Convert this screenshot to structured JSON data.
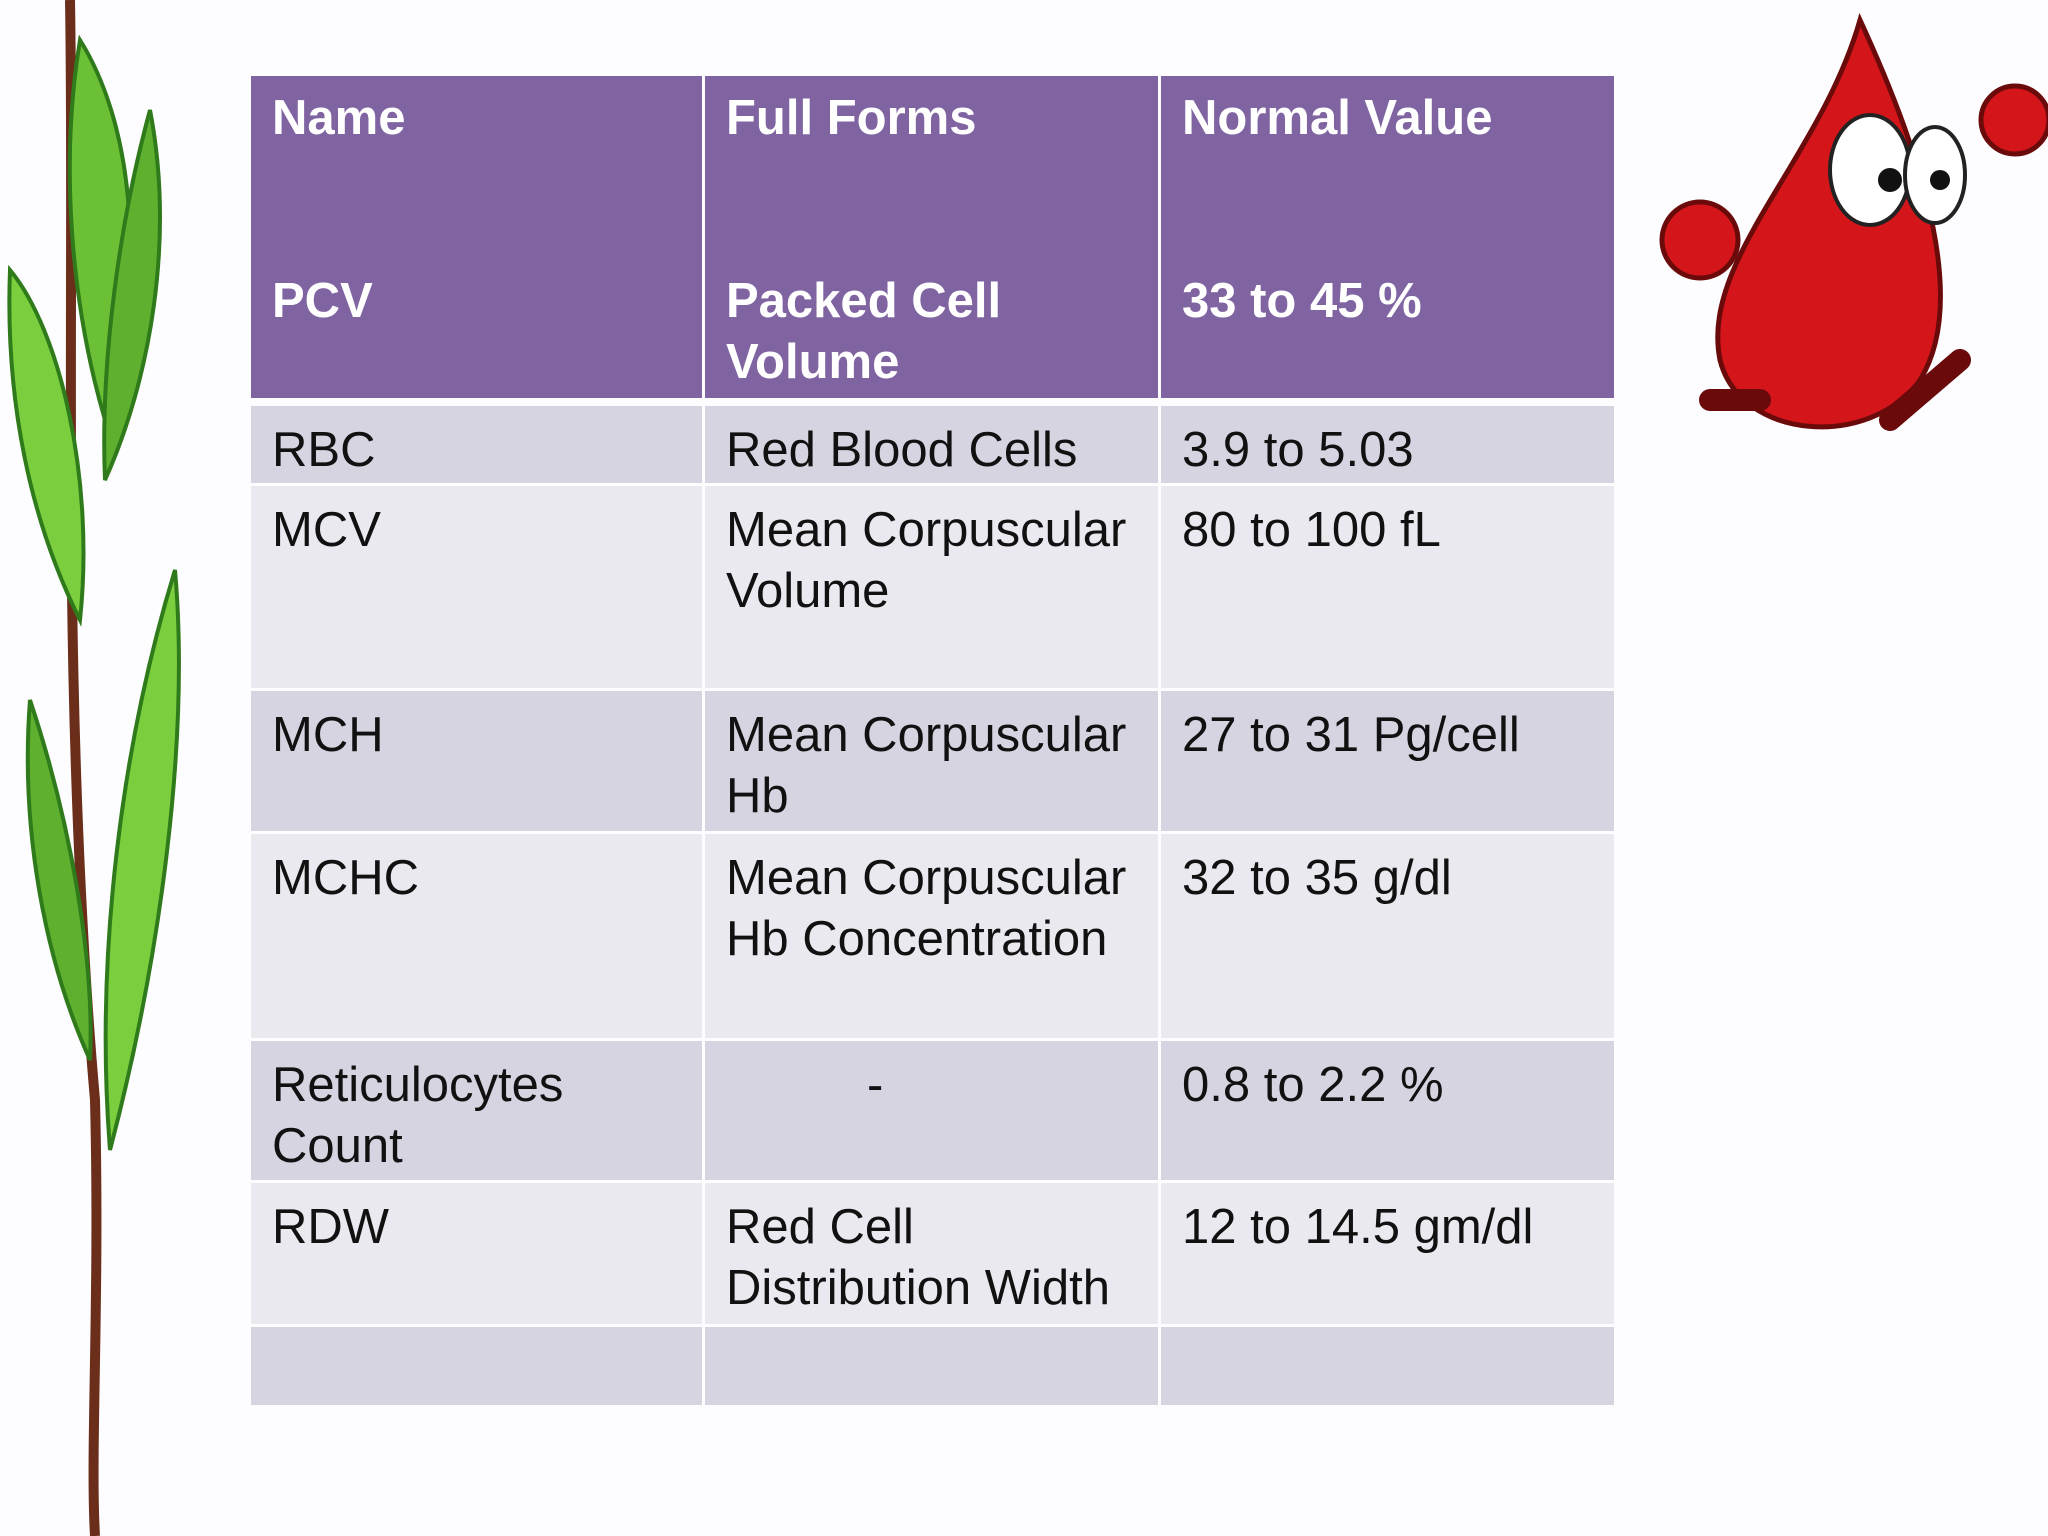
{
  "table": {
    "header": [
      "Name",
      "Full Forms",
      "Normal Value"
    ],
    "subheader": [
      "PCV",
      "Packed Cell Volume",
      "33 to 45 %"
    ],
    "rows": [
      [
        "RBC",
        "Red Blood Cells",
        "3.9 to 5.03"
      ],
      [
        "MCV",
        "Mean Corpuscular Volume",
        "80 to 100 fL"
      ],
      [
        "MCH",
        "Mean Corpuscular Hb",
        "27 to 31 Pg/cell"
      ],
      [
        "MCHC",
        "Mean Corpuscular Hb Concentration",
        "32 to 35 g/dl"
      ],
      [
        "Reticulocytes Count",
        "-",
        "0.8 to 2.2 %"
      ],
      [
        "RDW",
        "Red Cell Distribution Width",
        "12 to 14.5 gm/dl"
      ]
    ]
  }
}
